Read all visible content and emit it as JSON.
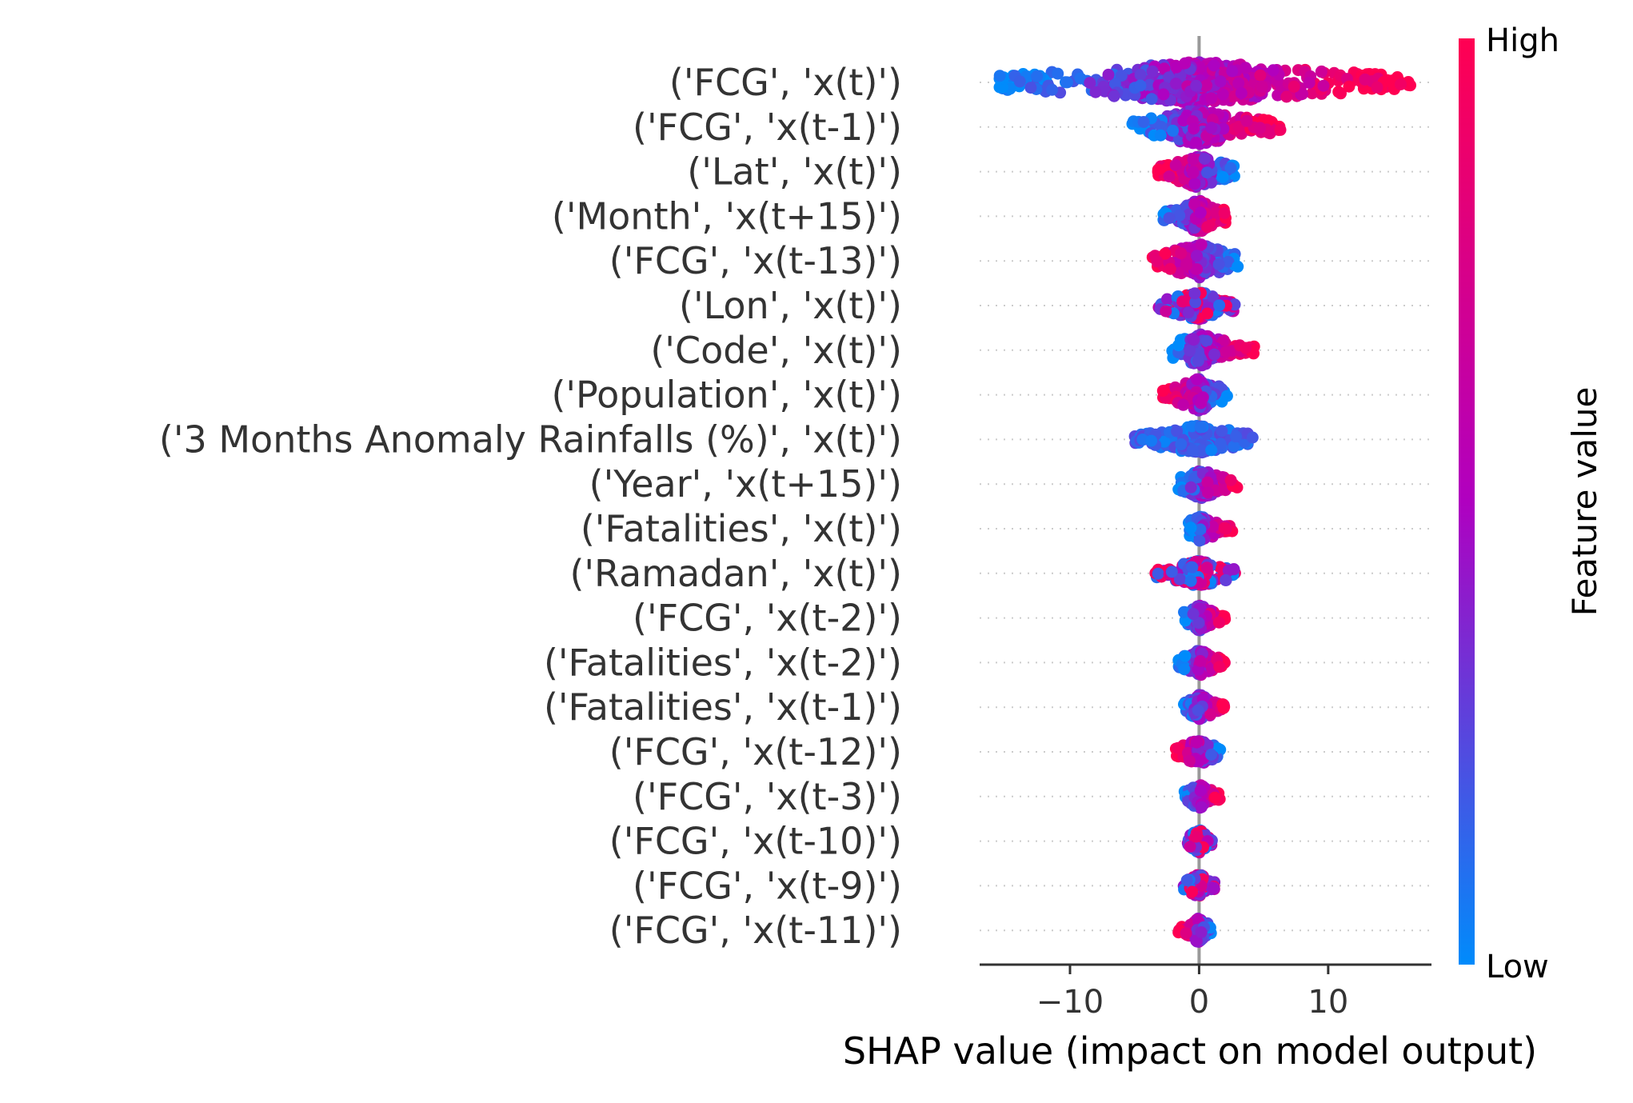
{
  "chart_data": {
    "type": "scatter",
    "subtype": "shap-beeswarm",
    "features": [
      {
        "label": "('FCG', 'x(t)')",
        "min": -15.5,
        "max": 16.5,
        "highSide": "right",
        "spread": 1.0
      },
      {
        "label": "('FCG', 'x(t-1)')",
        "min": -5.2,
        "max": 6.3,
        "highSide": "right",
        "spread": 0.8
      },
      {
        "label": "('Lat', 'x(t)')",
        "min": -3.2,
        "max": 2.8,
        "highSide": "left",
        "spread": 0.7
      },
      {
        "label": "('Month', 'x(t+15)')",
        "min": -2.8,
        "max": 2.2,
        "highSide": "right",
        "spread": 0.7
      },
      {
        "label": "('FCG', 'x(t-13)')",
        "min": -3.6,
        "max": 3.0,
        "highSide": "left",
        "spread": 0.8
      },
      {
        "label": "('Lon', 'x(t)')",
        "min": -3.2,
        "max": 2.8,
        "highSide": "mixed",
        "spread": 0.6
      },
      {
        "label": "('Code', 'x(t)')",
        "min": -2.1,
        "max": 4.3,
        "highSide": "right",
        "spread": 0.7
      },
      {
        "label": "('Population', 'x(t)')",
        "min": -2.8,
        "max": 2.2,
        "highSide": "left",
        "spread": 0.7
      },
      {
        "label": "('3 Months Anomaly Rainfalls (%)', 'x(t)')",
        "min": -5.0,
        "max": 4.2,
        "highSide": "none",
        "spread": 0.6
      },
      {
        "label": "('Year', 'x(t+15)')",
        "min": -1.6,
        "max": 3.0,
        "highSide": "right",
        "spread": 0.6
      },
      {
        "label": "('Fatalities', 'x(t)')",
        "min": -0.8,
        "max": 2.6,
        "highSide": "right",
        "spread": 0.5
      },
      {
        "label": "('Ramadan', 'x(t)')",
        "min": -3.4,
        "max": 3.0,
        "highSide": "mixed",
        "spread": 0.5
      },
      {
        "label": "('FCG', 'x(t-2)')",
        "min": -1.2,
        "max": 2.0,
        "highSide": "right",
        "spread": 0.5
      },
      {
        "label": "('Fatalities', 'x(t-2)')",
        "min": -1.6,
        "max": 2.0,
        "highSide": "right",
        "spread": 0.5
      },
      {
        "label": "('Fatalities', 'x(t-1)')",
        "min": -1.2,
        "max": 2.0,
        "highSide": "right",
        "spread": 0.5
      },
      {
        "label": "('FCG', 'x(t-12)')",
        "min": -1.8,
        "max": 1.8,
        "highSide": "left",
        "spread": 0.5
      },
      {
        "label": "('FCG', 'x(t-3)')",
        "min": -1.2,
        "max": 1.6,
        "highSide": "right",
        "spread": 0.45
      },
      {
        "label": "('FCG', 'x(t-10)')",
        "min": -0.9,
        "max": 1.0,
        "highSide": "mixed",
        "spread": 0.45
      },
      {
        "label": "('FCG', 'x(t-9)')",
        "min": -1.2,
        "max": 1.2,
        "highSide": "mixed",
        "spread": 0.45
      },
      {
        "label": "('FCG', 'x(t-11)')",
        "min": -1.6,
        "max": 1.0,
        "highSide": "left",
        "spread": 0.45
      }
    ],
    "xlabel": "SHAP value (impact on model output)",
    "xlim": [
      -17,
      18
    ],
    "xticks": [
      -10,
      0,
      10
    ],
    "xtick_labels": [
      "−10",
      "0",
      "10"
    ],
    "colorbar": {
      "label": "Feature value",
      "high": "High",
      "low": "Low"
    },
    "colors": {
      "low": "#008bfb",
      "mid": "#b000c0",
      "high": "#ff0052",
      "text": "#333333",
      "zero_line": "#999999",
      "guide": "#cccccc"
    }
  }
}
